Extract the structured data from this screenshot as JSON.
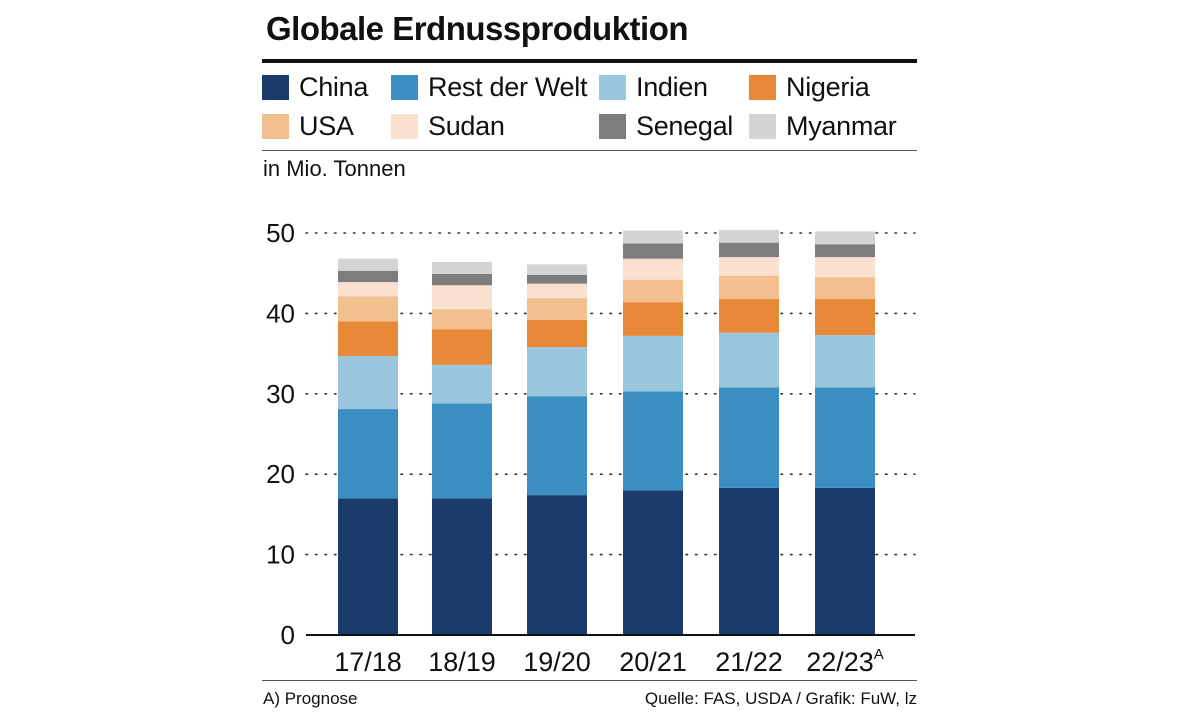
{
  "chart_data": {
    "type": "bar",
    "stacked": true,
    "title": "Globale Erdnussproduktion",
    "ylabel": "in Mio. Tonnen",
    "xlabel": "",
    "ylim": [
      0,
      50
    ],
    "yticks": [
      0,
      10,
      20,
      30,
      40,
      50
    ],
    "grid": true,
    "legend_position": "top",
    "categories": [
      "17/18",
      "18/19",
      "19/20",
      "20/21",
      "21/22",
      "22/23"
    ],
    "category_superscripts": [
      "",
      "",
      "",
      "",
      "",
      "A"
    ],
    "series": [
      {
        "name": "China",
        "color": "#1a3c6b",
        "values": [
          17.0,
          17.0,
          17.4,
          18.0,
          18.3,
          18.3
        ]
      },
      {
        "name": "Rest der Welt",
        "color": "#3a8ec1",
        "values": [
          11.1,
          11.8,
          12.3,
          12.3,
          12.5,
          12.5
        ]
      },
      {
        "name": "Indien",
        "color": "#9ac6de",
        "values": [
          6.6,
          4.8,
          6.1,
          6.9,
          6.8,
          6.5
        ]
      },
      {
        "name": "Nigeria",
        "color": "#e8893a",
        "values": [
          4.3,
          4.4,
          3.4,
          4.2,
          4.2,
          4.5
        ]
      },
      {
        "name": "USA",
        "color": "#f2bf8e",
        "values": [
          3.1,
          2.5,
          2.7,
          2.8,
          2.9,
          2.7
        ]
      },
      {
        "name": "Sudan",
        "color": "#fae0cf",
        "values": [
          1.8,
          3.0,
          1.8,
          2.6,
          2.3,
          2.5
        ]
      },
      {
        "name": "Senegal",
        "color": "#7d7d7d",
        "values": [
          1.4,
          1.4,
          1.1,
          1.9,
          1.8,
          1.6
        ]
      },
      {
        "name": "Myanmar",
        "color": "#d4d4d4",
        "values": [
          1.5,
          1.5,
          1.3,
          1.6,
          1.6,
          1.6
        ]
      }
    ]
  },
  "footer": {
    "footnote": "A) Prognose",
    "source": "Quelle: FAS, USDA / Grafik: FuW, lz"
  }
}
